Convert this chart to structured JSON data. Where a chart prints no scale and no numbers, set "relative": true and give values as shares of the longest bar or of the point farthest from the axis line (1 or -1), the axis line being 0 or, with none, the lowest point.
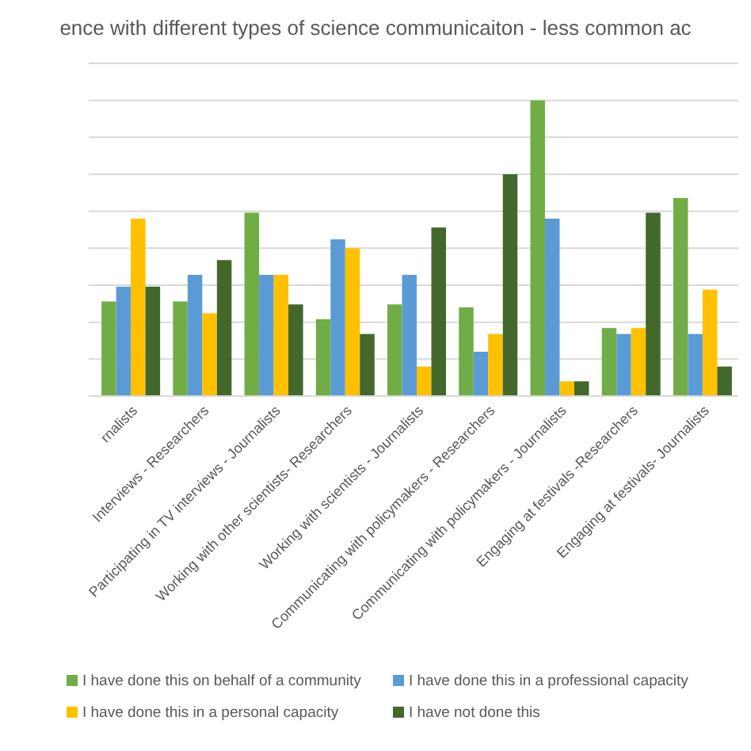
{
  "chart_data": {
    "type": "bar",
    "title": "ence with different types of science communicaiton - less common ac",
    "relative": true,
    "grid": "y",
    "legend": "bottom",
    "categories": [
      "rnalists",
      "Interviews - Researchers",
      "Participating in TV interviews - Journalists",
      "Working with other scientists- Researchers",
      "Working with scientists - Journalists",
      "Communicating with policymakers - Researchers",
      "Communicating with policymakers - Journalists",
      "Engaging at festivals -Researchers",
      "Engaging at festivals- Journalists"
    ],
    "series": [
      {
        "name": "I have done this on behalf of a community",
        "color": "#70ad47",
        "values": [
          0.32,
          0.32,
          0.62,
          0.26,
          0.31,
          0.3,
          1,
          0.23,
          0.67
        ]
      },
      {
        "name": "I have done this in a professional capacity",
        "color": "#5b9bd5",
        "values": [
          0.37,
          0.41,
          0.41,
          0.53,
          0.41,
          0.15,
          0.6,
          0.21,
          0.21
        ]
      },
      {
        "name": "I have done this in a personal capacity",
        "color": "#ffc000",
        "values": [
          0.6,
          0.28,
          0.41,
          0.5,
          0.1,
          0.21,
          0.05,
          0.23,
          0.36
        ]
      },
      {
        "name": "I have not done this",
        "color": "#43682b",
        "values": [
          0.37,
          0.46,
          0.31,
          0.21,
          0.57,
          0.75,
          0.05,
          0.62,
          0.1
        ]
      }
    ]
  }
}
